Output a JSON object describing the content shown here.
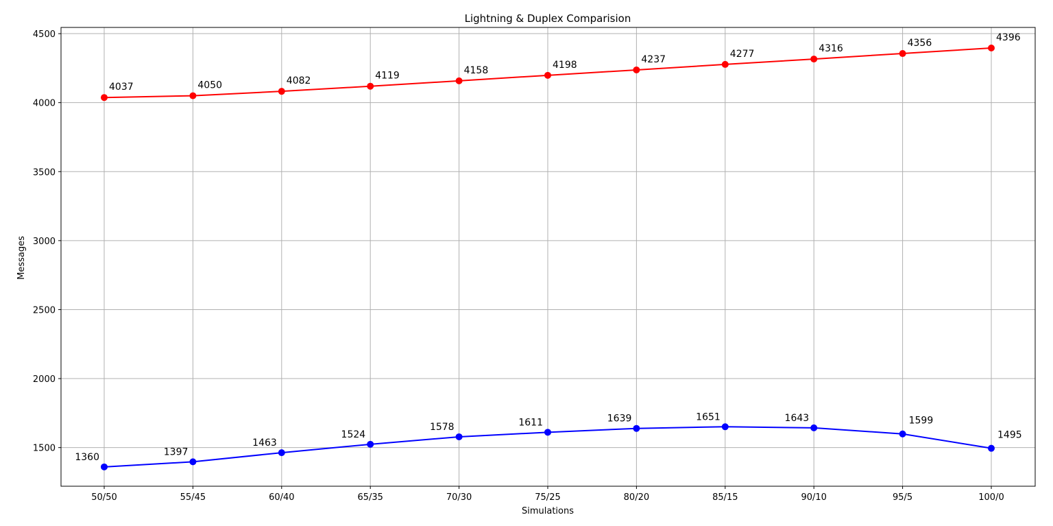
{
  "chart_data": {
    "type": "line",
    "title": "Lightning & Duplex Comparision",
    "xlabel": "Simulations",
    "ylabel": "Messages",
    "categories": [
      "50/50",
      "55/45",
      "60/40",
      "65/35",
      "70/30",
      "75/25",
      "80/20",
      "85/15",
      "90/10",
      "95/5",
      "100/0"
    ],
    "ylim": [
      1220,
      4545
    ],
    "yticks": [
      1500,
      2000,
      2500,
      3000,
      3500,
      4000,
      4500
    ],
    "grid": true,
    "series": [
      {
        "color": "#ff0000",
        "values": [
          4037,
          4050,
          4082,
          4119,
          4158,
          4198,
          4237,
          4277,
          4316,
          4356,
          4396
        ],
        "labels": [
          "4037",
          "4050",
          "4082",
          "4119",
          "4158",
          "4198",
          "4237",
          "4277",
          "4316",
          "4356",
          "4396"
        ]
      },
      {
        "color": "#0000ff",
        "values": [
          1360,
          1397,
          1463,
          1524,
          1578,
          1611,
          1639,
          1651,
          1643,
          1599,
          1495
        ],
        "labels": [
          "1360",
          "1397",
          "1463",
          "1524",
          "1578",
          "1611",
          "1639",
          "1651",
          "1643",
          "1599",
          "1495"
        ]
      }
    ]
  }
}
